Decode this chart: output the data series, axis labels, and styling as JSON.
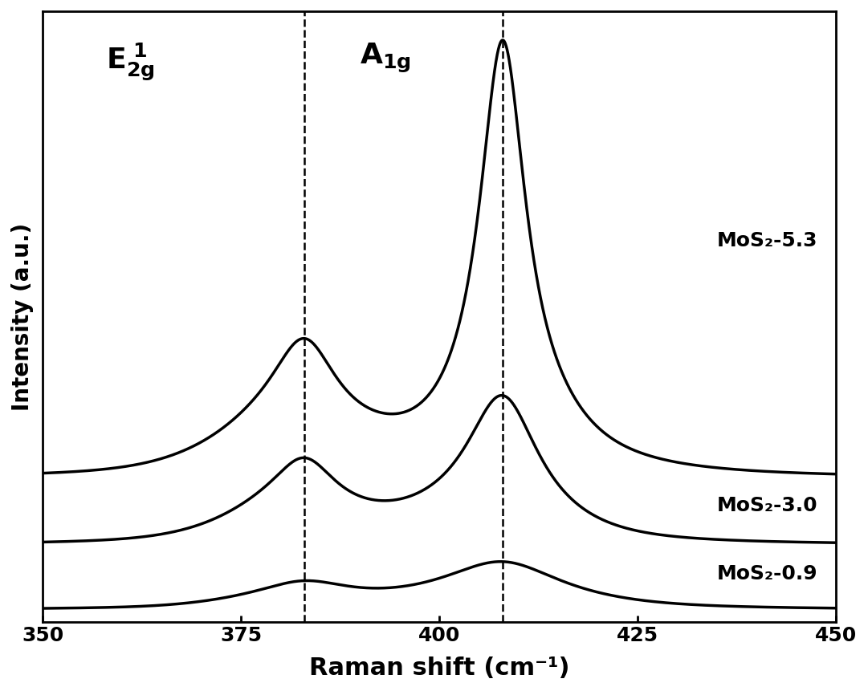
{
  "x_min": 350,
  "x_max": 450,
  "xlabel": "Raman shift (cm⁻¹)",
  "ylabel": "Intensity (a.u.)",
  "dashed_line_1": 383,
  "dashed_line_2": 408,
  "background_color": "#ffffff",
  "line_color": "#000000",
  "font_size_ylabel": 20,
  "font_size_xlabel": 22,
  "font_size_ticks": 18,
  "font_size_annot": 24,
  "font_size_series": 18,
  "series_labels": [
    "MoS₂-5.3",
    "MoS₂-3.0",
    "MoS₂-0.9"
  ],
  "xticks": [
    350,
    375,
    400,
    425,
    450
  ],
  "line_width": 2.5
}
